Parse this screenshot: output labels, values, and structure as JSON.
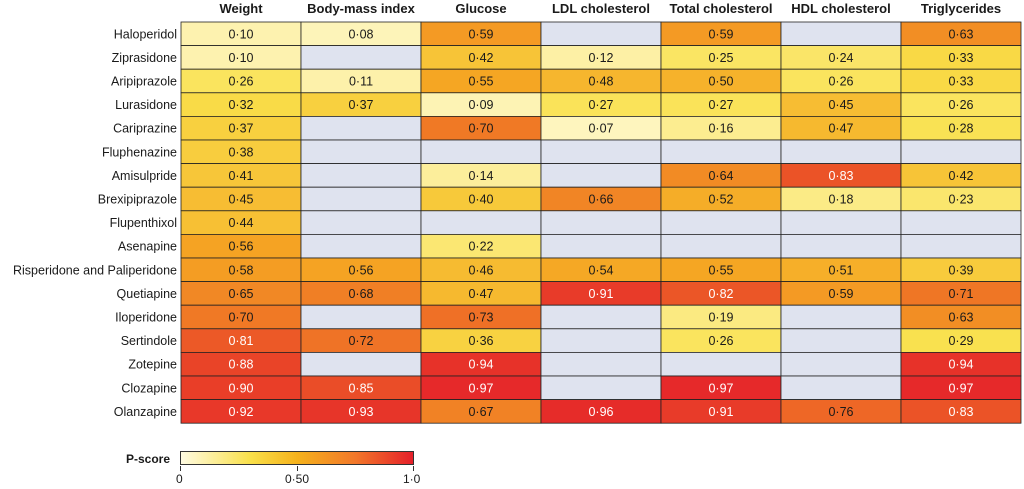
{
  "chart_data": {
    "type": "heatmap",
    "columns": [
      "Weight",
      "Body-mass index",
      "Glucose",
      "LDL cholesterol",
      "Total cholesterol",
      "HDL cholesterol",
      "Triglycerides"
    ],
    "rows": [
      {
        "drug": "Haloperidol",
        "values": [
          0.1,
          0.08,
          0.59,
          null,
          0.59,
          null,
          0.63
        ],
        "labels": [
          "0·10",
          "0·08",
          "0·59",
          "",
          "0·59",
          "",
          "0·63"
        ]
      },
      {
        "drug": "Ziprasidone",
        "values": [
          0.1,
          null,
          0.42,
          0.12,
          0.25,
          0.24,
          0.33
        ],
        "labels": [
          "0·10",
          "",
          "0·42",
          "0·12",
          "0·25",
          "0·24",
          "0·33"
        ]
      },
      {
        "drug": "Aripiprazole",
        "values": [
          0.26,
          0.11,
          0.55,
          0.48,
          0.5,
          0.26,
          0.33
        ],
        "labels": [
          "0·26",
          "0·11",
          "0·55",
          "0·48",
          "0·50",
          "0·26",
          "0·33"
        ]
      },
      {
        "drug": "Lurasidone",
        "values": [
          0.32,
          0.37,
          0.09,
          0.27,
          0.27,
          0.45,
          0.26
        ],
        "labels": [
          "0·32",
          "0·37",
          "0·09",
          "0·27",
          "0·27",
          "0·45",
          "0·26"
        ]
      },
      {
        "drug": "Cariprazine",
        "values": [
          0.37,
          null,
          0.7,
          0.07,
          0.16,
          0.47,
          0.28
        ],
        "labels": [
          "0·37",
          "",
          "0·70",
          "0·07",
          "0·16",
          "0·47",
          "0·28"
        ]
      },
      {
        "drug": "Fluphenazine",
        "values": [
          0.38,
          null,
          null,
          null,
          null,
          null,
          null
        ],
        "labels": [
          "0·38",
          "",
          "",
          "",
          "",
          "",
          ""
        ]
      },
      {
        "drug": "Amisulpride",
        "values": [
          0.41,
          null,
          0.14,
          null,
          0.64,
          0.83,
          0.42
        ],
        "labels": [
          "0·41",
          "",
          "0·14",
          "",
          "0·64",
          "0·83",
          "0·42"
        ]
      },
      {
        "drug": "Brexipiprazole",
        "values": [
          0.45,
          null,
          0.4,
          0.66,
          0.52,
          0.18,
          0.23
        ],
        "labels": [
          "0·45",
          "",
          "0·40",
          "0·66",
          "0·52",
          "0·18",
          "0·23"
        ]
      },
      {
        "drug": "Flupenthixol",
        "values": [
          0.44,
          null,
          null,
          null,
          null,
          null,
          null
        ],
        "labels": [
          "0·44",
          "",
          "",
          "",
          "",
          "",
          ""
        ]
      },
      {
        "drug": "Asenapine",
        "values": [
          0.56,
          null,
          0.22,
          null,
          null,
          null,
          null
        ],
        "labels": [
          "0·56",
          "",
          "0·22",
          "",
          "",
          "",
          ""
        ]
      },
      {
        "drug": "Risperidone and Paliperidone",
        "values": [
          0.58,
          0.56,
          0.46,
          0.54,
          0.55,
          0.51,
          0.39
        ],
        "labels": [
          "0·58",
          "0·56",
          "0·46",
          "0·54",
          "0·55",
          "0·51",
          "0·39"
        ]
      },
      {
        "drug": "Quetiapine",
        "values": [
          0.65,
          0.68,
          0.47,
          0.91,
          0.82,
          0.59,
          0.71
        ],
        "labels": [
          "0·65",
          "0·68",
          "0·47",
          "0·91",
          "0·82",
          "0·59",
          "0·71"
        ]
      },
      {
        "drug": "Iloperidone",
        "values": [
          0.7,
          null,
          0.73,
          null,
          0.19,
          null,
          0.63
        ],
        "labels": [
          "0·70",
          "",
          "0·73",
          "",
          "0·19",
          "",
          "0·63"
        ]
      },
      {
        "drug": "Sertindole",
        "values": [
          0.81,
          0.72,
          0.36,
          null,
          0.26,
          null,
          0.29
        ],
        "labels": [
          "0·81",
          "0·72",
          "0·36",
          "",
          "0·26",
          "",
          "0·29"
        ]
      },
      {
        "drug": "Zotepine",
        "values": [
          0.88,
          null,
          0.94,
          null,
          null,
          null,
          0.94
        ],
        "labels": [
          "0·88",
          "",
          "0·94",
          "",
          "",
          "",
          "0·94"
        ]
      },
      {
        "drug": "Clozapine",
        "values": [
          0.9,
          0.85,
          0.97,
          null,
          0.97,
          null,
          0.97
        ],
        "labels": [
          "0·90",
          "0·85",
          "0·97",
          "",
          "0·97",
          "",
          "0·97"
        ]
      },
      {
        "drug": "Olanzapine",
        "values": [
          0.92,
          0.93,
          0.67,
          0.96,
          0.91,
          0.76,
          0.83
        ],
        "labels": [
          "0·92",
          "0·93",
          "0·67",
          "0·96",
          "0·91",
          "0·76",
          "0·83"
        ]
      }
    ],
    "colors": {
      "missing": "#dfe3ef",
      "scale_low": "#fffbe1",
      "scale_yellow": "#f9e04a",
      "scale_orange": "#f5a623",
      "scale_high": "#e5202a",
      "gridline": "#222222",
      "text_dark": "#1a1a1a",
      "text_light": "#ffffff"
    },
    "legend": {
      "title": "P-score",
      "ticks": [
        "0",
        "0·50",
        "1·0"
      ],
      "range": [
        0,
        1
      ]
    }
  }
}
